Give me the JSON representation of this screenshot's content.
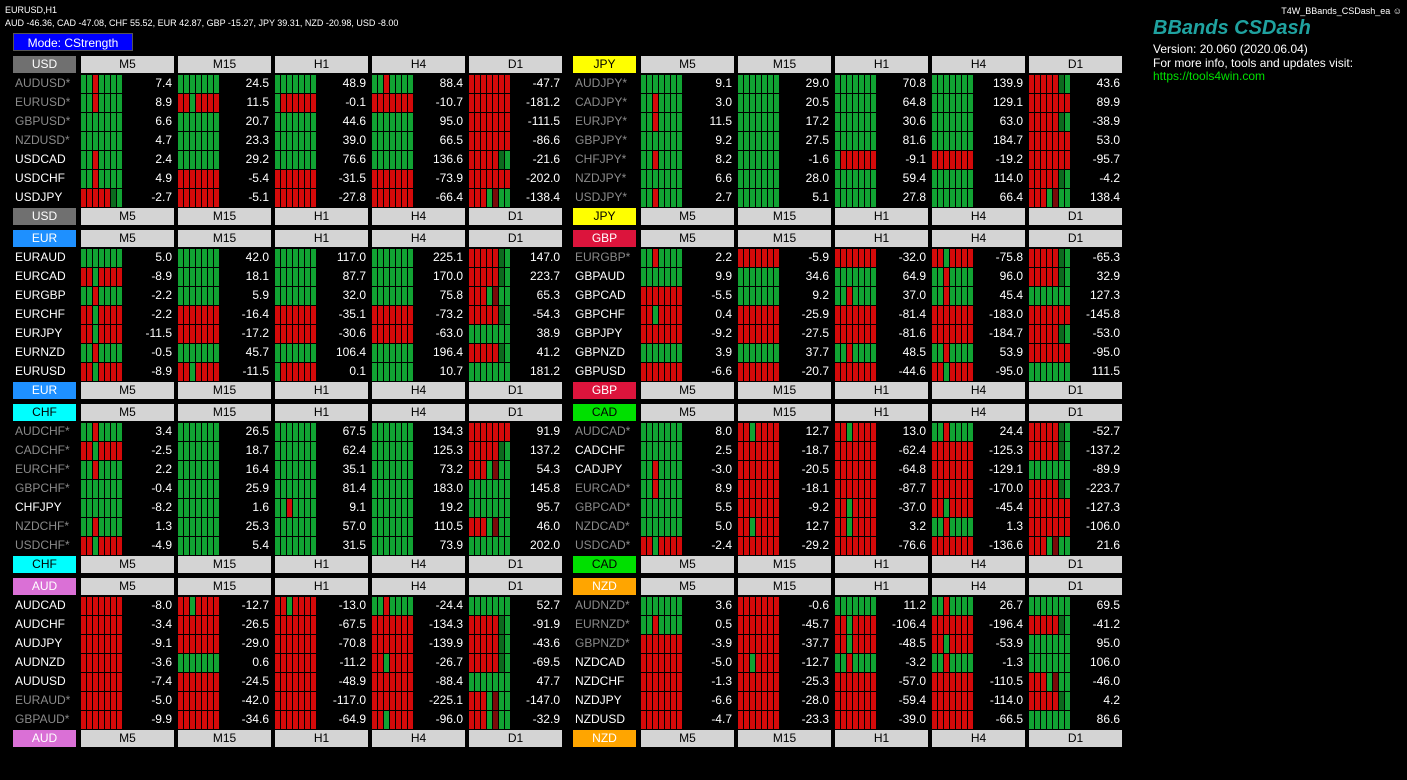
{
  "chart_symbol": "EURUSD,H1",
  "strength_line": "AUD -46.36, CAD -47.08, CHF 55.52, EUR 42.87, GBP -15.27, JPY 39.31, NZD -20.98, USD -8.00",
  "mode_label": "Mode: CStrength",
  "ea_name": "T4W_BBands_CSDash_ea",
  "brand": {
    "title": "BBands CSDash",
    "version": "Version: 20.060 (2020.06.04)",
    "info": "For more info, tools and updates visit:",
    "link": "https://tools4win.com"
  },
  "timeframes": [
    "M5",
    "M15",
    "H1",
    "H4",
    "D1"
  ],
  "colors": {
    "up": "#11a333",
    "down": "#d40a0a",
    "up_dark": "#0c6b1f",
    "down_dark": "#7a0a0a",
    "neutral": "#c8c8c8"
  },
  "blocks": [
    {
      "currency": "USD",
      "color": "#707070",
      "pairs": [
        {
          "name": "AUDUSD*",
          "dim": true,
          "values": [
            "7.4",
            "24.5",
            "48.9",
            "88.4",
            "-47.7"
          ],
          "trend": [
            "m1",
            "g",
            "g",
            "m1",
            "r"
          ]
        },
        {
          "name": "EURUSD*",
          "dim": true,
          "values": [
            "8.9",
            "11.5",
            "-0.1",
            "-10.7",
            "-181.2"
          ],
          "trend": [
            "m1",
            "m2",
            "m3",
            "r",
            "r"
          ]
        },
        {
          "name": "GBPUSD*",
          "dim": true,
          "values": [
            "6.6",
            "20.7",
            "44.6",
            "95.0",
            "-111.5"
          ],
          "trend": [
            "g",
            "g",
            "g",
            "g",
            "r"
          ]
        },
        {
          "name": "NZDUSD*",
          "dim": true,
          "values": [
            "4.7",
            "23.3",
            "39.0",
            "66.5",
            "-86.6"
          ],
          "trend": [
            "g",
            "g",
            "g",
            "g",
            "r"
          ]
        },
        {
          "name": "USDCAD",
          "dim": false,
          "values": [
            "2.4",
            "29.2",
            "76.6",
            "136.6",
            "-21.6"
          ],
          "trend": [
            "m1",
            "g",
            "g",
            "g",
            "m4"
          ]
        },
        {
          "name": "USDCHF",
          "dim": false,
          "values": [
            "4.9",
            "-5.4",
            "-31.5",
            "-73.9",
            "-202.0"
          ],
          "trend": [
            "m1",
            "r",
            "r",
            "r",
            "r"
          ]
        },
        {
          "name": "USDJPY",
          "dim": false,
          "values": [
            "-2.7",
            "-5.1",
            "-27.8",
            "-66.4",
            "-138.4"
          ],
          "trend": [
            "m4",
            "r",
            "r",
            "r",
            "m5"
          ]
        }
      ]
    },
    {
      "currency": "JPY",
      "color": "#ffff00",
      "pairs": [
        {
          "name": "AUDJPY*",
          "dim": true,
          "values": [
            "9.1",
            "29.0",
            "70.8",
            "139.9",
            "43.6"
          ],
          "trend": [
            "g",
            "g",
            "g",
            "g",
            "m4"
          ]
        },
        {
          "name": "CADJPY*",
          "dim": true,
          "values": [
            "3.0",
            "20.5",
            "64.8",
            "129.1",
            "89.9"
          ],
          "trend": [
            "m1",
            "g",
            "g",
            "g",
            "r"
          ]
        },
        {
          "name": "EURJPY*",
          "dim": true,
          "values": [
            "11.5",
            "17.2",
            "30.6",
            "63.0",
            "-38.9"
          ],
          "trend": [
            "m1",
            "g",
            "g",
            "g",
            "m4"
          ]
        },
        {
          "name": "GBPJPY*",
          "dim": true,
          "values": [
            "9.2",
            "27.5",
            "81.6",
            "184.7",
            "53.0"
          ],
          "trend": [
            "g",
            "g",
            "g",
            "g",
            "r"
          ]
        },
        {
          "name": "CHFJPY*",
          "dim": true,
          "values": [
            "8.2",
            "-1.6",
            "-9.1",
            "-19.2",
            "-95.7"
          ],
          "trend": [
            "m1",
            "g",
            "m3",
            "r",
            "r"
          ]
        },
        {
          "name": "NZDJPY*",
          "dim": true,
          "values": [
            "6.6",
            "28.0",
            "59.4",
            "114.0",
            "-4.2"
          ],
          "trend": [
            "g",
            "g",
            "g",
            "g",
            "m4"
          ]
        },
        {
          "name": "USDJPY*",
          "dim": true,
          "values": [
            "2.7",
            "5.1",
            "27.8",
            "66.4",
            "138.4"
          ],
          "trend": [
            "m1",
            "g",
            "g",
            "g",
            "m5"
          ]
        }
      ]
    },
    {
      "currency": "EUR",
      "color": "#1e90ff",
      "pairs": [
        {
          "name": "EURAUD",
          "dim": false,
          "values": [
            "5.0",
            "42.0",
            "117.0",
            "225.1",
            "147.0"
          ],
          "trend": [
            "g",
            "g",
            "g",
            "g",
            "m4"
          ]
        },
        {
          "name": "EURCAD",
          "dim": false,
          "values": [
            "-8.9",
            "18.1",
            "87.7",
            "170.0",
            "223.7"
          ],
          "trend": [
            "m2",
            "g",
            "g",
            "g",
            "m4"
          ]
        },
        {
          "name": "EURGBP",
          "dim": false,
          "values": [
            "-2.2",
            "5.9",
            "32.0",
            "75.8",
            "65.3"
          ],
          "trend": [
            "m1",
            "g",
            "g",
            "g",
            "m5"
          ]
        },
        {
          "name": "EURCHF",
          "dim": false,
          "values": [
            "-2.2",
            "-16.4",
            "-35.1",
            "-73.2",
            "-54.3"
          ],
          "trend": [
            "m2",
            "r",
            "r",
            "r",
            "m4"
          ]
        },
        {
          "name": "EURJPY",
          "dim": false,
          "values": [
            "-11.5",
            "-17.2",
            "-30.6",
            "-63.0",
            "38.9"
          ],
          "trend": [
            "m2",
            "r",
            "r",
            "r",
            "g"
          ]
        },
        {
          "name": "EURNZD",
          "dim": false,
          "values": [
            "-0.5",
            "45.7",
            "106.4",
            "196.4",
            "41.2"
          ],
          "trend": [
            "m1",
            "g",
            "g",
            "g",
            "m4"
          ]
        },
        {
          "name": "EURUSD",
          "dim": false,
          "values": [
            "-8.9",
            "-11.5",
            "0.1",
            "10.7",
            "181.2"
          ],
          "trend": [
            "m2",
            "m2",
            "m3",
            "g",
            "g"
          ]
        }
      ]
    },
    {
      "currency": "GBP",
      "color": "#dc143c",
      "pairs": [
        {
          "name": "EURGBP*",
          "dim": true,
          "values": [
            "2.2",
            "-5.9",
            "-32.0",
            "-75.8",
            "-65.3"
          ],
          "trend": [
            "m1",
            "r",
            "r",
            "m2",
            "m4"
          ]
        },
        {
          "name": "GBPAUD",
          "dim": false,
          "values": [
            "9.9",
            "34.6",
            "64.9",
            "96.0",
            "32.9"
          ],
          "trend": [
            "g",
            "g",
            "g",
            "m1",
            "m4"
          ]
        },
        {
          "name": "GBPCAD",
          "dim": false,
          "values": [
            "-5.5",
            "9.2",
            "37.0",
            "45.4",
            "127.3"
          ],
          "trend": [
            "r",
            "g",
            "m1",
            "m1",
            "g"
          ]
        },
        {
          "name": "GBPCHF",
          "dim": false,
          "values": [
            "0.4",
            "-25.9",
            "-81.4",
            "-183.0",
            "-145.8"
          ],
          "trend": [
            "m2",
            "r",
            "r",
            "r",
            "r"
          ]
        },
        {
          "name": "GBPJPY",
          "dim": false,
          "values": [
            "-9.2",
            "-27.5",
            "-81.6",
            "-184.7",
            "-53.0"
          ],
          "trend": [
            "r",
            "r",
            "r",
            "r",
            "m4"
          ]
        },
        {
          "name": "GBPNZD",
          "dim": false,
          "values": [
            "3.9",
            "37.7",
            "48.5",
            "53.9",
            "-95.0"
          ],
          "trend": [
            "g",
            "g",
            "m1",
            "m1",
            "r"
          ]
        },
        {
          "name": "GBPUSD",
          "dim": false,
          "values": [
            "-6.6",
            "-20.7",
            "-44.6",
            "-95.0",
            "111.5"
          ],
          "trend": [
            "r",
            "r",
            "r",
            "m2",
            "g"
          ]
        }
      ]
    },
    {
      "currency": "CHF",
      "color": "#00ffff",
      "pairs": [
        {
          "name": "AUDCHF*",
          "dim": true,
          "values": [
            "3.4",
            "26.5",
            "67.5",
            "134.3",
            "91.9"
          ],
          "trend": [
            "m1",
            "g",
            "g",
            "g",
            "r"
          ]
        },
        {
          "name": "CADCHF*",
          "dim": true,
          "values": [
            "-2.5",
            "18.7",
            "62.4",
            "125.3",
            "137.2"
          ],
          "trend": [
            "m2",
            "g",
            "g",
            "g",
            "m4"
          ]
        },
        {
          "name": "EURCHF*",
          "dim": true,
          "values": [
            "2.2",
            "16.4",
            "35.1",
            "73.2",
            "54.3"
          ],
          "trend": [
            "m1",
            "g",
            "g",
            "g",
            "m5"
          ]
        },
        {
          "name": "GBPCHF*",
          "dim": true,
          "values": [
            "-0.4",
            "25.9",
            "81.4",
            "183.0",
            "145.8"
          ],
          "trend": [
            "g",
            "g",
            "g",
            "g",
            "g"
          ]
        },
        {
          "name": "CHFJPY",
          "dim": false,
          "values": [
            "-8.2",
            "1.6",
            "9.1",
            "19.2",
            "95.7"
          ],
          "trend": [
            "g",
            "g",
            "m1",
            "g",
            "g"
          ]
        },
        {
          "name": "NZDCHF*",
          "dim": true,
          "values": [
            "1.3",
            "25.3",
            "57.0",
            "110.5",
            "46.0"
          ],
          "trend": [
            "m1",
            "g",
            "g",
            "g",
            "m5"
          ]
        },
        {
          "name": "USDCHF*",
          "dim": true,
          "values": [
            "-4.9",
            "5.4",
            "31.5",
            "73.9",
            "202.0"
          ],
          "trend": [
            "m2",
            "g",
            "g",
            "g",
            "g"
          ]
        }
      ]
    },
    {
      "currency": "CAD",
      "color": "#00e000",
      "pairs": [
        {
          "name": "AUDCAD*",
          "dim": true,
          "values": [
            "8.0",
            "12.7",
            "13.0",
            "24.4",
            "-52.7"
          ],
          "trend": [
            "g",
            "m2",
            "m2",
            "m1",
            "m4"
          ]
        },
        {
          "name": "CADCHF",
          "dim": false,
          "values": [
            "2.5",
            "-18.7",
            "-62.4",
            "-125.3",
            "-137.2"
          ],
          "trend": [
            "g",
            "r",
            "r",
            "r",
            "m4"
          ]
        },
        {
          "name": "CADJPY",
          "dim": false,
          "values": [
            "-3.0",
            "-20.5",
            "-64.8",
            "-129.1",
            "-89.9"
          ],
          "trend": [
            "m1",
            "r",
            "r",
            "r",
            "g"
          ]
        },
        {
          "name": "EURCAD*",
          "dim": true,
          "values": [
            "8.9",
            "-18.1",
            "-87.7",
            "-170.0",
            "-223.7"
          ],
          "trend": [
            "m1",
            "r",
            "r",
            "r",
            "m4"
          ]
        },
        {
          "name": "GBPCAD*",
          "dim": true,
          "values": [
            "5.5",
            "-9.2",
            "-37.0",
            "-45.4",
            "-127.3"
          ],
          "trend": [
            "g",
            "r",
            "m2",
            "m2",
            "r"
          ]
        },
        {
          "name": "NZDCAD*",
          "dim": true,
          "values": [
            "5.0",
            "12.7",
            "3.2",
            "1.3",
            "-106.0"
          ],
          "trend": [
            "g",
            "m2",
            "m2",
            "m1",
            "r"
          ]
        },
        {
          "name": "USDCAD*",
          "dim": true,
          "values": [
            "-2.4",
            "-29.2",
            "-76.6",
            "-136.6",
            "21.6"
          ],
          "trend": [
            "m2",
            "r",
            "r",
            "r",
            "m5"
          ]
        }
      ]
    },
    {
      "currency": "AUD",
      "color": "#da70d6",
      "pairs": [
        {
          "name": "AUDCAD",
          "dim": false,
          "values": [
            "-8.0",
            "-12.7",
            "-13.0",
            "-24.4",
            "52.7"
          ],
          "trend": [
            "r",
            "m2",
            "m2",
            "m1",
            "g"
          ]
        },
        {
          "name": "AUDCHF",
          "dim": false,
          "values": [
            "-3.4",
            "-26.5",
            "-67.5",
            "-134.3",
            "-91.9"
          ],
          "trend": [
            "r",
            "r",
            "r",
            "r",
            "m4"
          ]
        },
        {
          "name": "AUDJPY",
          "dim": false,
          "values": [
            "-9.1",
            "-29.0",
            "-70.8",
            "-139.9",
            "-43.6"
          ],
          "trend": [
            "r",
            "r",
            "r",
            "r",
            "m4"
          ]
        },
        {
          "name": "AUDNZD",
          "dim": false,
          "values": [
            "-3.6",
            "0.6",
            "-11.2",
            "-26.7",
            "-69.5"
          ],
          "trend": [
            "r",
            "g",
            "r",
            "m2",
            "m4"
          ]
        },
        {
          "name": "AUDUSD",
          "dim": false,
          "values": [
            "-7.4",
            "-24.5",
            "-48.9",
            "-88.4",
            "47.7"
          ],
          "trend": [
            "r",
            "r",
            "r",
            "r",
            "g"
          ]
        },
        {
          "name": "EURAUD*",
          "dim": true,
          "values": [
            "-5.0",
            "-42.0",
            "-117.0",
            "-225.1",
            "-147.0"
          ],
          "trend": [
            "r",
            "r",
            "r",
            "r",
            "m5"
          ]
        },
        {
          "name": "GBPAUD*",
          "dim": true,
          "values": [
            "-9.9",
            "-34.6",
            "-64.9",
            "-96.0",
            "-32.9"
          ],
          "trend": [
            "r",
            "r",
            "r",
            "m2",
            "m5"
          ]
        }
      ]
    },
    {
      "currency": "NZD",
      "color": "#ffa500",
      "pairs": [
        {
          "name": "AUDNZD*",
          "dim": true,
          "values": [
            "3.6",
            "-0.6",
            "11.2",
            "26.7",
            "69.5"
          ],
          "trend": [
            "g",
            "r",
            "g",
            "m1",
            "g"
          ]
        },
        {
          "name": "EURNZD*",
          "dim": true,
          "values": [
            "0.5",
            "-45.7",
            "-106.4",
            "-196.4",
            "-41.2"
          ],
          "trend": [
            "m1",
            "r",
            "m2",
            "r",
            "m4"
          ]
        },
        {
          "name": "GBPNZD*",
          "dim": true,
          "values": [
            "-3.9",
            "-37.7",
            "-48.5",
            "-53.9",
            "95.0"
          ],
          "trend": [
            "r",
            "r",
            "m2",
            "m2",
            "g"
          ]
        },
        {
          "name": "NZDCAD",
          "dim": false,
          "values": [
            "-5.0",
            "-12.7",
            "-3.2",
            "-1.3",
            "106.0"
          ],
          "trend": [
            "r",
            "m2",
            "m1",
            "m1",
            "g"
          ]
        },
        {
          "name": "NZDCHF",
          "dim": false,
          "values": [
            "-1.3",
            "-25.3",
            "-57.0",
            "-110.5",
            "-46.0"
          ],
          "trend": [
            "r",
            "r",
            "r",
            "r",
            "m5"
          ]
        },
        {
          "name": "NZDJPY",
          "dim": false,
          "values": [
            "-6.6",
            "-28.0",
            "-59.4",
            "-114.0",
            "4.2"
          ],
          "trend": [
            "r",
            "r",
            "r",
            "r",
            "m4"
          ]
        },
        {
          "name": "NZDUSD",
          "dim": false,
          "values": [
            "-4.7",
            "-23.3",
            "-39.0",
            "-66.5",
            "86.6"
          ],
          "trend": [
            "r",
            "r",
            "r",
            "r",
            "g"
          ]
        }
      ]
    }
  ]
}
